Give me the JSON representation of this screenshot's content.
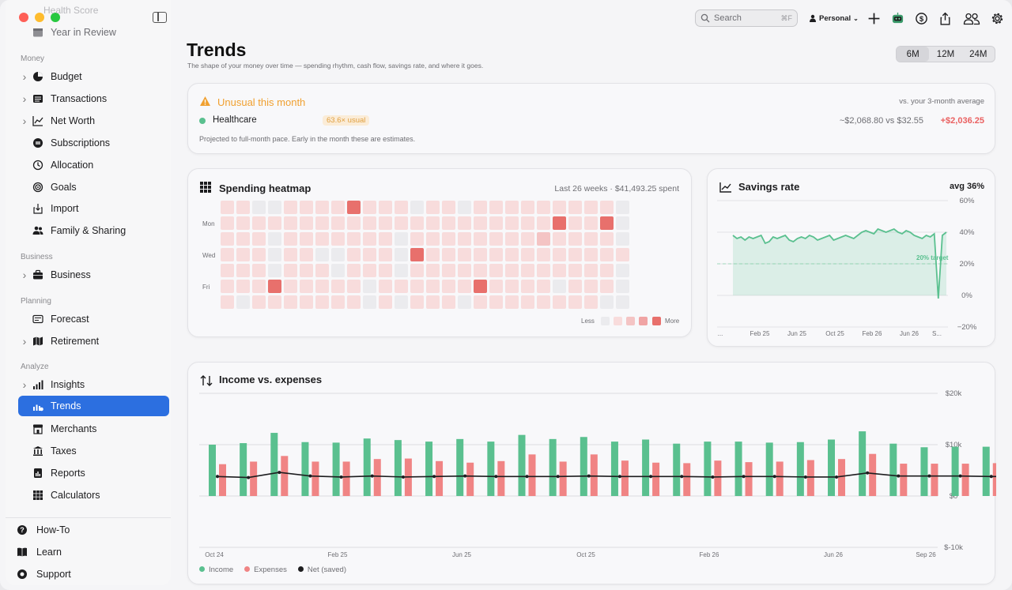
{
  "sidebar": {
    "faded_top": "Health Score",
    "top_items": [
      {
        "label": "Year in Review"
      }
    ],
    "sections": {
      "money": "Money",
      "business": "Business",
      "planning": "Planning",
      "analyze": "Analyze"
    },
    "money_items": [
      {
        "label": "Budget",
        "chevron": true,
        "icon": "pie-icon"
      },
      {
        "label": "Transactions",
        "chevron": true,
        "icon": "list-icon"
      },
      {
        "label": "Net Worth",
        "chevron": true,
        "icon": "chart-line-icon"
      },
      {
        "label": "Subscriptions",
        "chevron": false,
        "icon": "repeat-icon"
      },
      {
        "label": "Allocation",
        "chevron": false,
        "icon": "clock-icon"
      },
      {
        "label": "Goals",
        "chevron": false,
        "icon": "target-icon"
      },
      {
        "label": "Import",
        "chevron": false,
        "icon": "import-icon"
      },
      {
        "label": "Family & Sharing",
        "chevron": false,
        "icon": "people-icon"
      }
    ],
    "business_items": [
      {
        "label": "Business",
        "chevron": true,
        "icon": "briefcase-icon"
      }
    ],
    "planning_items": [
      {
        "label": "Forecast",
        "chevron": false,
        "icon": "forecast-icon"
      },
      {
        "label": "Retirement",
        "chevron": true,
        "icon": "map-icon"
      }
    ],
    "analyze_items": [
      {
        "label": "Insights",
        "chevron": true,
        "icon": "bars-icon"
      },
      {
        "label": "Trends",
        "chevron": false,
        "icon": "trends-icon",
        "active": true
      },
      {
        "label": "Merchants",
        "chevron": false,
        "icon": "store-icon"
      },
      {
        "label": "Taxes",
        "chevron": false,
        "icon": "bank-icon"
      },
      {
        "label": "Reports",
        "chevron": false,
        "icon": "report-icon"
      },
      {
        "label": "Calculators",
        "chevron": false,
        "icon": "calc-grid-icon"
      }
    ],
    "bottom_items": [
      {
        "label": "How-To",
        "icon": "help-icon"
      },
      {
        "label": "Learn",
        "icon": "book-icon"
      },
      {
        "label": "Support",
        "icon": "support-icon"
      }
    ]
  },
  "toolbar": {
    "search_placeholder": "Search",
    "search_shortcut": "⌘F",
    "profile": "Personal"
  },
  "page": {
    "title": "Trends",
    "subtitle": "The shape of your money over time — spending rhythm, cash flow, savings rate, and where it goes.",
    "ranges": [
      "6M",
      "12M",
      "24M"
    ],
    "selected_range": "6M"
  },
  "anomaly": {
    "title": "Unusual this month",
    "comparison_note": "vs. your 3-month average",
    "category": "Healthcare",
    "badge": "63.6× usual",
    "compare": "~$2,068.80 vs $32.55",
    "delta": "+$2,036.25",
    "footnote": "Projected to full-month pace. Early in the month these are estimates."
  },
  "heatmap": {
    "title": "Spending heatmap",
    "meta": "Last 26 weeks · $41,493.25 spent",
    "row_labels": [
      "Mon",
      "Wed",
      "Fri"
    ],
    "legend_less": "Less",
    "legend_more": "More",
    "colors": [
      "#ebebee",
      "#f8dcdc",
      "#f4c4c4",
      "#f0a4a4",
      "#e8706c"
    ],
    "intensity": [
      [
        1,
        1,
        0,
        0,
        1,
        1,
        1,
        1,
        4,
        1,
        1,
        1,
        0,
        1,
        1,
        0,
        1,
        1,
        1,
        1,
        1,
        1,
        1,
        1,
        1,
        0
      ],
      [
        1,
        1,
        1,
        1,
        1,
        1,
        1,
        1,
        1,
        1,
        1,
        1,
        1,
        1,
        1,
        1,
        1,
        1,
        1,
        1,
        1,
        4,
        1,
        1,
        4,
        0
      ],
      [
        1,
        1,
        1,
        0,
        1,
        1,
        1,
        1,
        1,
        1,
        1,
        0,
        1,
        1,
        1,
        1,
        1,
        1,
        1,
        1,
        2,
        1,
        1,
        1,
        1,
        0
      ],
      [
        1,
        1,
        1,
        0,
        1,
        1,
        0,
        0,
        1,
        1,
        1,
        0,
        4,
        1,
        1,
        1,
        1,
        1,
        1,
        1,
        1,
        1,
        1,
        1,
        1,
        1
      ],
      [
        1,
        1,
        1,
        0,
        1,
        1,
        1,
        0,
        1,
        1,
        1,
        0,
        1,
        1,
        1,
        1,
        1,
        1,
        1,
        1,
        1,
        1,
        1,
        1,
        1,
        0
      ],
      [
        1,
        1,
        1,
        4,
        1,
        1,
        1,
        1,
        1,
        0,
        1,
        1,
        1,
        1,
        1,
        1,
        4,
        1,
        1,
        1,
        1,
        0,
        1,
        1,
        1,
        0
      ],
      [
        1,
        0,
        1,
        1,
        1,
        1,
        1,
        1,
        1,
        0,
        1,
        0,
        1,
        1,
        1,
        0,
        1,
        1,
        1,
        1,
        1,
        1,
        1,
        1,
        0,
        0
      ]
    ]
  },
  "savings": {
    "title": "Savings rate",
    "avg": "avg 36%",
    "target_label": "20% target",
    "x_ticks": [
      "...",
      "Feb 25",
      "Jun 25",
      "Oct 25",
      "Feb 26",
      "Jun 26",
      "S..."
    ],
    "y_ticks": [
      "60%",
      "40%",
      "20%",
      "0%",
      "−20%"
    ]
  },
  "income_expenses": {
    "title": "Income vs. expenses",
    "x_ticks": [
      "Oct 24",
      "Feb 25",
      "Jun 25",
      "Oct 25",
      "Feb 26",
      "Jun 26",
      "Sep 26"
    ],
    "y_ticks": [
      "$20k",
      "$10k",
      "$0",
      "$-10k"
    ],
    "legend": [
      "Income",
      "Expenses",
      "Net (saved)"
    ],
    "colors": {
      "income": "#5ac08f",
      "expenses": "#f08484",
      "net": "#1d1d1f"
    }
  },
  "chart_data": [
    {
      "type": "line",
      "title": "Savings rate",
      "ylim": [
        -20,
        60
      ],
      "y_unit": "%",
      "target": 20,
      "series": [
        {
          "values": [
            38,
            36,
            37,
            35,
            37,
            36,
            37,
            38,
            33,
            34,
            37,
            36,
            37,
            38,
            35,
            34,
            36,
            37,
            36,
            38,
            37,
            35,
            36,
            37,
            38,
            35,
            36,
            37,
            38,
            37,
            36,
            38,
            40,
            41,
            40,
            39,
            42,
            41,
            40,
            41,
            42,
            40,
            39,
            41,
            40,
            38,
            37,
            36,
            38,
            37,
            39,
            -2,
            38,
            40
          ]
        }
      ]
    },
    {
      "type": "bar",
      "title": "Income vs. expenses",
      "ylim": [
        -10000,
        20000
      ],
      "series": [
        {
          "name": "Income",
          "values": [
            10000,
            10300,
            12300,
            10500,
            10400,
            11200,
            10900,
            10600,
            11100,
            10600,
            11900,
            11100,
            11500,
            10600,
            11000,
            10200,
            10600,
            10600,
            10400,
            10500,
            11000,
            12600,
            10200,
            9500,
            9600,
            9600,
            9700,
            9700,
            9600,
            9800,
            9600,
            9700
          ]
        },
        {
          "name": "Expenses",
          "values": [
            6200,
            6700,
            7800,
            6700,
            6700,
            7200,
            7300,
            6800,
            6500,
            6800,
            8100,
            6700,
            8100,
            6900,
            6500,
            6400,
            6900,
            6600,
            6700,
            7000,
            7200,
            8200,
            6300,
            6300,
            6300,
            6400,
            6300,
            6400,
            6300,
            6300,
            6300,
            6500
          ]
        },
        {
          "name": "Net (saved)",
          "values": [
            3800,
            3600,
            4600,
            3900,
            3700,
            3900,
            3700,
            3800,
            3900,
            3800,
            3800,
            3800,
            3900,
            3800,
            3800,
            3800,
            3700,
            3800,
            3800,
            3700,
            3700,
            4500,
            3900,
            3900,
            3900,
            3800,
            3800,
            3800,
            3300,
            3300,
            0,
            3800
          ]
        }
      ]
    }
  ]
}
